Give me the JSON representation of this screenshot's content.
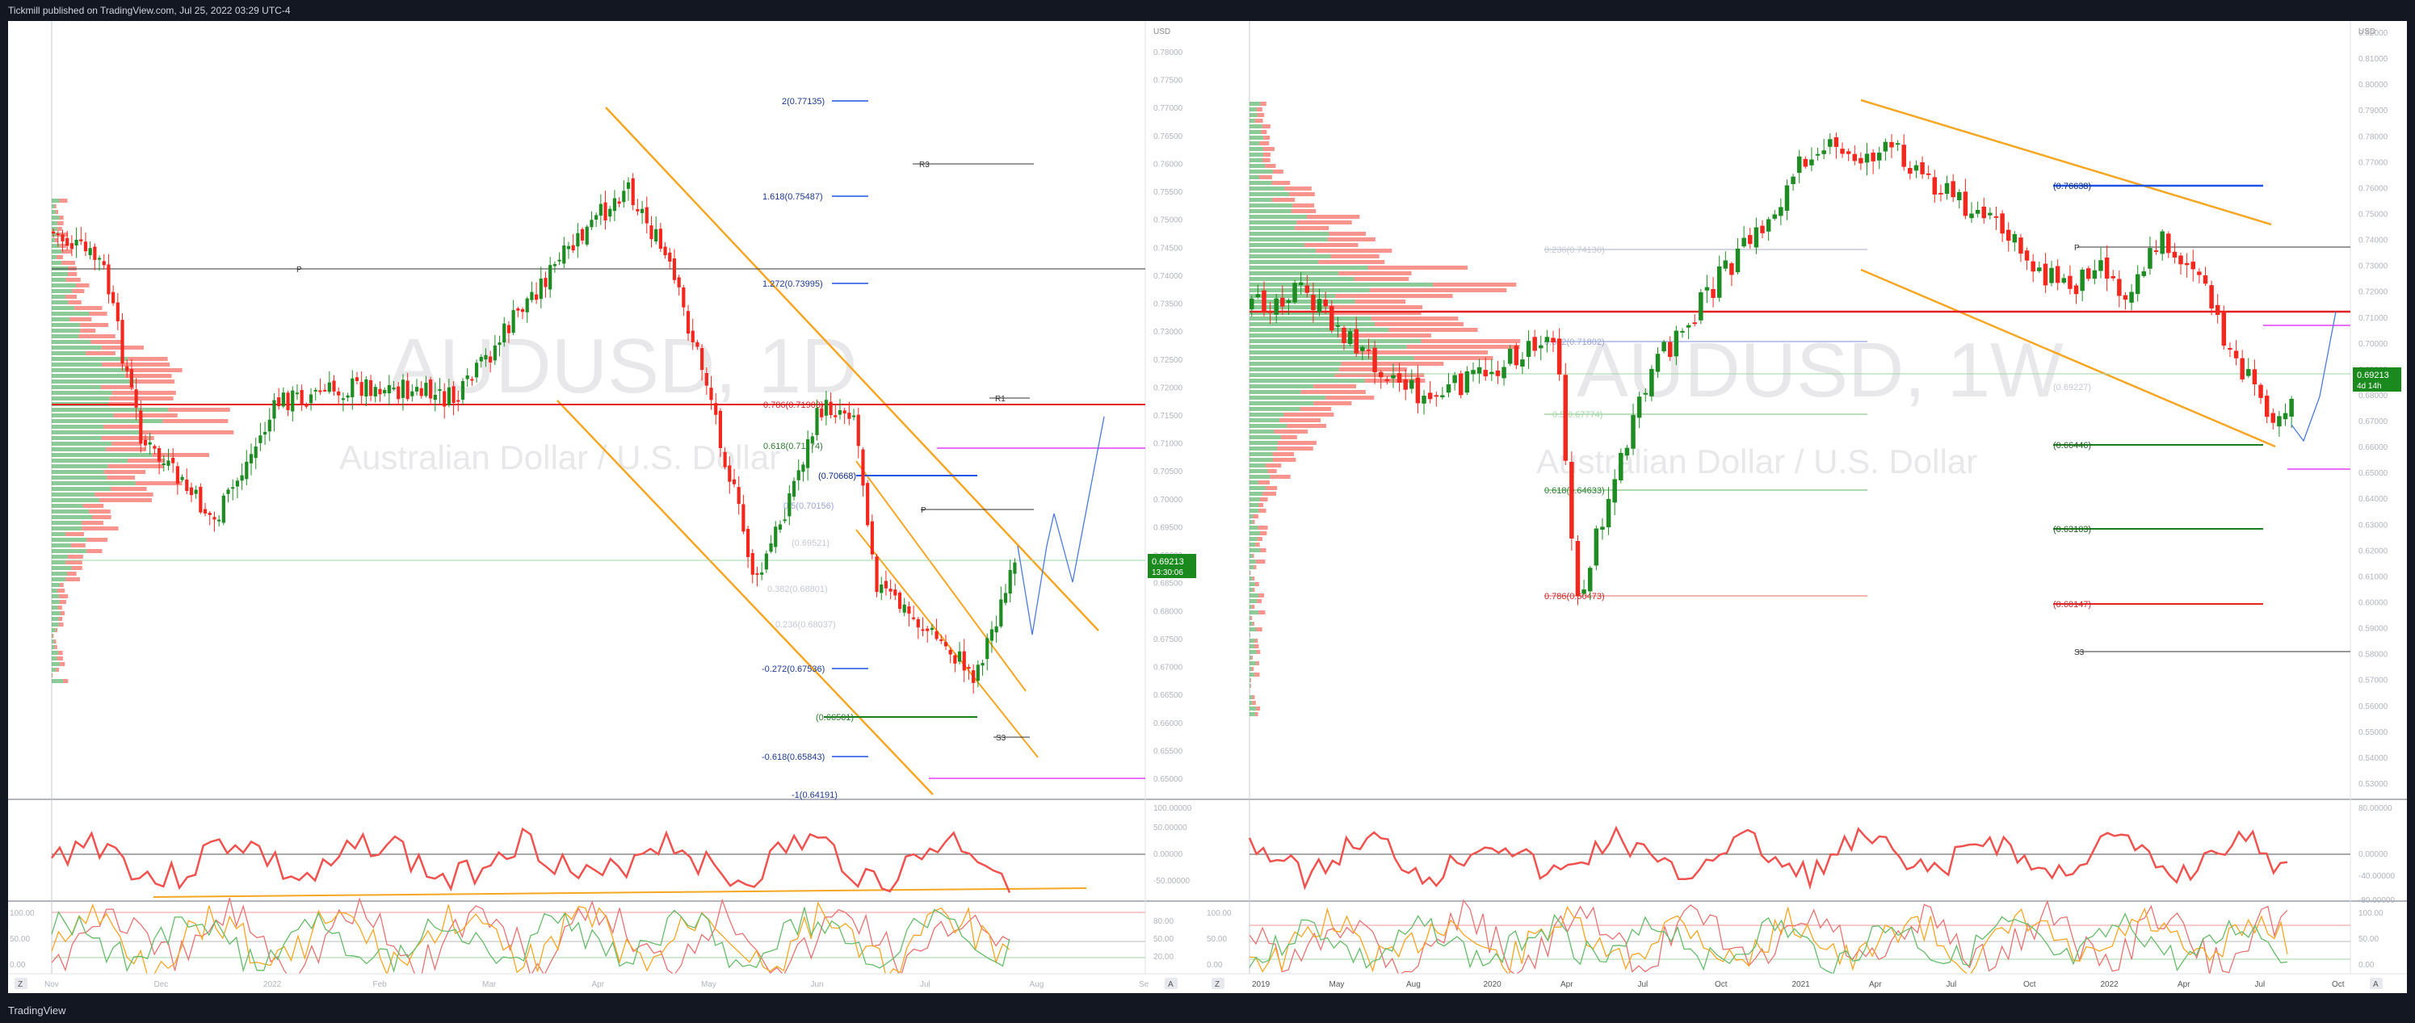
{
  "header": {
    "published": "Tickmill published on TradingView.com, Jul 25, 2022 03:29 UTC-4"
  },
  "footer": {
    "brand": "TradingView"
  },
  "colors": {
    "up": "#1e8c22",
    "down": "#f2281f",
    "orange": "#f5a623",
    "blue": "#1e53e5",
    "pink": "#e040fb",
    "price_tag": "#1b8a1e"
  },
  "left_chart": {
    "symbol": "AUDUSD, 1D",
    "name": "Australian Dollar / U.S. Dollar",
    "currency": "USD",
    "price_label": "0.69213",
    "price_countdown": "13:30:06",
    "y_ticks": [
      "0.78000",
      "0.77500",
      "0.77000",
      "0.76500",
      "0.76000",
      "0.75500",
      "0.75000",
      "0.74500",
      "0.74000",
      "0.73500",
      "0.73000",
      "0.72500",
      "0.72000",
      "0.71500",
      "0.71000",
      "0.70500",
      "0.70000",
      "0.69500",
      "0.69000",
      "0.68500",
      "0.68000",
      "0.67500",
      "0.67000",
      "0.66500",
      "0.66000",
      "0.65500",
      "0.65000"
    ],
    "x_ticks": [
      "Nov",
      "Dec",
      "2022",
      "Feb",
      "Mar",
      "Apr",
      "May",
      "Jun",
      "Jul",
      "Aug",
      "Se"
    ],
    "fib_labels": [
      "2(0.77135)",
      "1.618(0.75487)",
      "1.272(0.73995)",
      "0.786(0.71903)",
      "0.618(0.71174)",
      "(0.70668)",
      "0.5(0.70156)",
      "(0.69521)",
      "0.382(0.68801)",
      "0.236(0.68037)",
      "-0.272(0.67536)",
      "(0.66501)",
      "-0.618(0.65843)",
      "-1(0.64191)"
    ],
    "pivot_labels": [
      "R3",
      "P",
      "R1",
      "P",
      "S3"
    ],
    "rsi_ticks": [
      "100.00000",
      "50.00000",
      "0.00000",
      "-50.00000"
    ],
    "stoch_ticks": [
      "100.00",
      "50.00",
      "0.00"
    ],
    "stoch_ticks_right": [
      "80.00",
      "50.00",
      "20.00"
    ]
  },
  "right_chart": {
    "symbol": "AUDUSD, 1W",
    "name": "Australian Dollar / U.S. Dollar",
    "currency": "USD",
    "price_label": "0.69213",
    "price_countdown": "4d 14h",
    "y_ticks": [
      "0.82000",
      "0.81000",
      "0.80000",
      "0.79000",
      "0.78000",
      "0.77000",
      "0.76000",
      "0.75000",
      "0.74000",
      "0.73000",
      "0.72000",
      "0.71000",
      "0.70000",
      "0.69000",
      "0.68000",
      "0.67000",
      "0.66000",
      "0.65000",
      "0.64000",
      "0.63000",
      "0.62000",
      "0.61000",
      "0.60000",
      "0.59000",
      "0.58000",
      "0.57000",
      "0.56000",
      "0.55000",
      "0.54000",
      "0.53000"
    ],
    "x_ticks": [
      "2019",
      "May",
      "Aug",
      "2020",
      "Apr",
      "Jul",
      "Oct",
      "2021",
      "Apr",
      "Jul",
      "Oct",
      "2022",
      "Apr",
      "Jul",
      "Oct"
    ],
    "fib_labels": [
      "0.236(0.74130)",
      "(0.76638)",
      "0.382(0.71802)",
      "(0.69227)",
      "0.5(0.67774)",
      "(0.66446)",
      "0.618(0.64633)",
      "(0.63103)",
      "0.786(0.60473)",
      "(0.60147)"
    ],
    "pivot_labels": [
      "P",
      "S3"
    ],
    "rsi_ticks": [
      "80.00000",
      "0.00000",
      "-40.00000",
      "-80.00000"
    ],
    "stoch_ticks": [
      "100.00",
      "50.00",
      "0.00"
    ]
  }
}
